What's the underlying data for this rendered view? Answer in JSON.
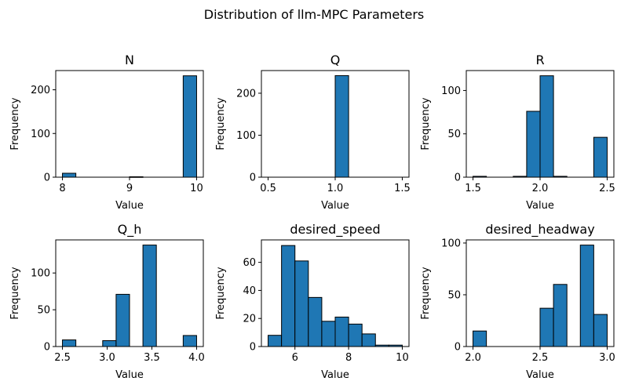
{
  "figure": {
    "title": "Distribution of llm-MPC Parameters"
  },
  "style": {
    "bar_fill": "#1f77b4",
    "bar_edge": "#000000",
    "background": "#ffffff"
  },
  "chart_data": [
    {
      "type": "bar",
      "title": "N",
      "xlabel": "Value",
      "ylabel": "Frequency",
      "bin_edges": [
        8.0,
        8.2,
        8.4,
        8.6,
        8.8,
        9.0,
        9.2,
        9.4,
        9.6,
        9.8,
        10.0
      ],
      "values": [
        9,
        0,
        0,
        0,
        0,
        1,
        0,
        0,
        0,
        232
      ],
      "xlim": [
        7.9,
        10.1
      ],
      "ylim": [
        0,
        244
      ],
      "xticks": [
        8,
        9,
        10
      ],
      "xtick_labels": [
        "8",
        "9",
        "10"
      ],
      "yticks": [
        0,
        100,
        200
      ],
      "ytick_labels": [
        "0",
        "100",
        "200"
      ]
    },
    {
      "type": "bar",
      "title": "Q",
      "xlabel": "Value",
      "ylabel": "Frequency",
      "bin_edges": [
        0.5,
        0.6,
        0.7,
        0.8,
        0.9,
        1.0,
        1.1,
        1.2,
        1.3,
        1.4,
        1.5
      ],
      "values": [
        0,
        0,
        0,
        0,
        0,
        242,
        0,
        0,
        0,
        0
      ],
      "xlim": [
        0.45,
        1.55
      ],
      "ylim": [
        0,
        254
      ],
      "xticks": [
        0.5,
        1.0,
        1.5
      ],
      "xtick_labels": [
        "0.5",
        "1.0",
        "1.5"
      ],
      "yticks": [
        0,
        100,
        200
      ],
      "ytick_labels": [
        "0",
        "100",
        "200"
      ]
    },
    {
      "type": "bar",
      "title": "R",
      "xlabel": "Value",
      "ylabel": "Frequency",
      "bin_edges": [
        1.5,
        1.6,
        1.7,
        1.8,
        1.9,
        2.0,
        2.1,
        2.2,
        2.3,
        2.4,
        2.5
      ],
      "values": [
        1,
        0,
        0,
        1,
        76,
        117,
        1,
        0,
        0,
        46
      ],
      "xlim": [
        1.45,
        2.55
      ],
      "ylim": [
        0,
        123
      ],
      "xticks": [
        1.5,
        2.0,
        2.5
      ],
      "xtick_labels": [
        "1.5",
        "2.0",
        "2.5"
      ],
      "yticks": [
        0,
        50,
        100
      ],
      "ytick_labels": [
        "0",
        "50",
        "100"
      ]
    },
    {
      "type": "bar",
      "title": "Q_h",
      "xlabel": "Value",
      "ylabel": "Frequency",
      "bin_edges": [
        2.5,
        2.65,
        2.8,
        2.95,
        3.1,
        3.25,
        3.4,
        3.55,
        3.7,
        3.85,
        4.0
      ],
      "values": [
        9,
        0,
        0,
        8,
        71,
        0,
        138,
        0,
        0,
        15
      ],
      "xlim": [
        2.425,
        4.075
      ],
      "ylim": [
        0,
        145
      ],
      "xticks": [
        2.5,
        3.0,
        3.5,
        4.0
      ],
      "xtick_labels": [
        "2.5",
        "3.0",
        "3.5",
        "4.0"
      ],
      "yticks": [
        0,
        50,
        100
      ],
      "ytick_labels": [
        "0",
        "50",
        "100"
      ]
    },
    {
      "type": "bar",
      "title": "desired_speed",
      "xlabel": "Value",
      "ylabel": "Frequency",
      "bin_edges": [
        5.0,
        5.5,
        6.0,
        6.5,
        7.0,
        7.5,
        8.0,
        8.5,
        9.0,
        9.5,
        10.0
      ],
      "values": [
        8,
        72,
        61,
        35,
        18,
        21,
        16,
        9,
        1,
        1
      ],
      "xlim": [
        4.75,
        10.25
      ],
      "ylim": [
        0,
        76
      ],
      "xticks": [
        6,
        8,
        10
      ],
      "xtick_labels": [
        "6",
        "8",
        "10"
      ],
      "yticks": [
        0,
        20,
        40,
        60
      ],
      "ytick_labels": [
        "0",
        "20",
        "40",
        "60"
      ]
    },
    {
      "type": "bar",
      "title": "desired_headway",
      "xlabel": "Value",
      "ylabel": "Frequency",
      "bin_edges": [
        2.0,
        2.1,
        2.2,
        2.3,
        2.4,
        2.5,
        2.6,
        2.7,
        2.8,
        2.9,
        3.0
      ],
      "values": [
        15,
        0,
        0,
        0,
        0,
        37,
        60,
        0,
        98,
        31
      ],
      "xlim": [
        1.95,
        3.05
      ],
      "ylim": [
        0,
        103
      ],
      "xticks": [
        2.0,
        2.5,
        3.0
      ],
      "xtick_labels": [
        "2.0",
        "2.5",
        "3.0"
      ],
      "yticks": [
        0,
        50,
        100
      ],
      "ytick_labels": [
        "0",
        "50",
        "100"
      ]
    }
  ]
}
